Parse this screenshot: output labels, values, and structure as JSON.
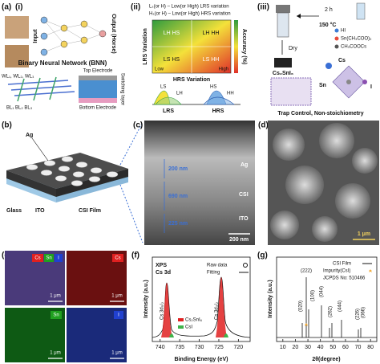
{
  "panel_a": {
    "label": "(a)",
    "i": {
      "label": "(i)",
      "input": "Input",
      "output": "Output (Horse)",
      "network": "Binary Neural Network (BNN)",
      "top_electrode": "Top Electrode",
      "switching_layer": "Switching layer",
      "bottom_electrode": "Bottom Electrode",
      "word_lines": "WL₁, WL₂, WL₃",
      "bit_lines": "BL₁ BL₂ BL₃"
    },
    "ii": {
      "label": "(ii)",
      "legend": [
        "Lₛ(or H) – Low(or High) LRS variation",
        "Hₛ(or H) – Low(or High) HRS variation"
      ],
      "y_axis": "LRS Variation",
      "x_axis": "HRS Variation",
      "color_axis": "Accuracy (%)",
      "cells": [
        "LH HS",
        "LH HH",
        "LS HS",
        "LS HH"
      ],
      "low": "Low",
      "high": "High",
      "ls": "LS",
      "lh": "LH",
      "lrs": "LRS",
      "hs": "HS",
      "hh": "HH",
      "hrs": "HRS"
    },
    "iii": {
      "label": "(iii)",
      "time": "2 h",
      "temperature": "150 °C",
      "reagents": [
        "HI",
        "Sn(CH₃COO)₂",
        "CH₃COOCs"
      ],
      "dry": "Dry",
      "product": "Cs₂SnI₆",
      "atoms": [
        "Cs",
        "Sn",
        "I"
      ],
      "caption": "Trap Control, Non-stoichiometry"
    }
  },
  "panel_b": {
    "label": "(b)",
    "ag": "Ag",
    "glass": "Glass",
    "ito": "ITO",
    "film": "CSI Film"
  },
  "panel_c": {
    "label": "(c)",
    "thickness": [
      "200 nm",
      "690 nm",
      "225 nm"
    ],
    "layers": [
      "Ag",
      "CSI",
      "ITO"
    ],
    "scale": "200 nm"
  },
  "panel_d": {
    "label": "(d)",
    "scale": "1 μm"
  },
  "panel_e": {
    "label": "(e)",
    "maps": [
      {
        "elements": [
          "Cs",
          "Sn",
          "I"
        ],
        "scale": "1 μm"
      },
      {
        "elements": [
          "Cs"
        ],
        "scale": "1 μm"
      },
      {
        "elements": [
          "Sn"
        ],
        "scale": "1 μm"
      },
      {
        "elements": [
          "I"
        ],
        "scale": "1 μm"
      }
    ]
  },
  "panel_f": {
    "label": "(f)",
    "method": "XPS",
    "orbital": "Cs 3d",
    "legend": [
      "Raw data",
      "Fitting"
    ],
    "peaks": [
      "Cs 3d₅/₂",
      "Cs 3d₃/₂"
    ],
    "components": [
      "Cs₂SnI₆",
      "CsI"
    ],
    "y_label": "Intensity (a.u.)",
    "x_label": "Binding Energy (eV)",
    "xlim": [
      742,
      717
    ],
    "xticks": [
      740,
      735,
      730,
      725,
      720
    ]
  },
  "panel_g": {
    "label": "(g)",
    "legend": [
      "CSI Film",
      "Impurity(CsI)",
      "JCPDS No: 510466"
    ],
    "peaks": [
      "(020)",
      "(222)",
      "(100)",
      "(044)",
      "(262)",
      "(444)",
      "(226)",
      "(066)"
    ],
    "y_label": "Intensity (a.u.)",
    "x_label": "2θ(degree)",
    "xlim": [
      5,
      85
    ],
    "xticks": [
      10,
      20,
      30,
      40,
      50,
      60,
      70,
      80
    ]
  }
}
